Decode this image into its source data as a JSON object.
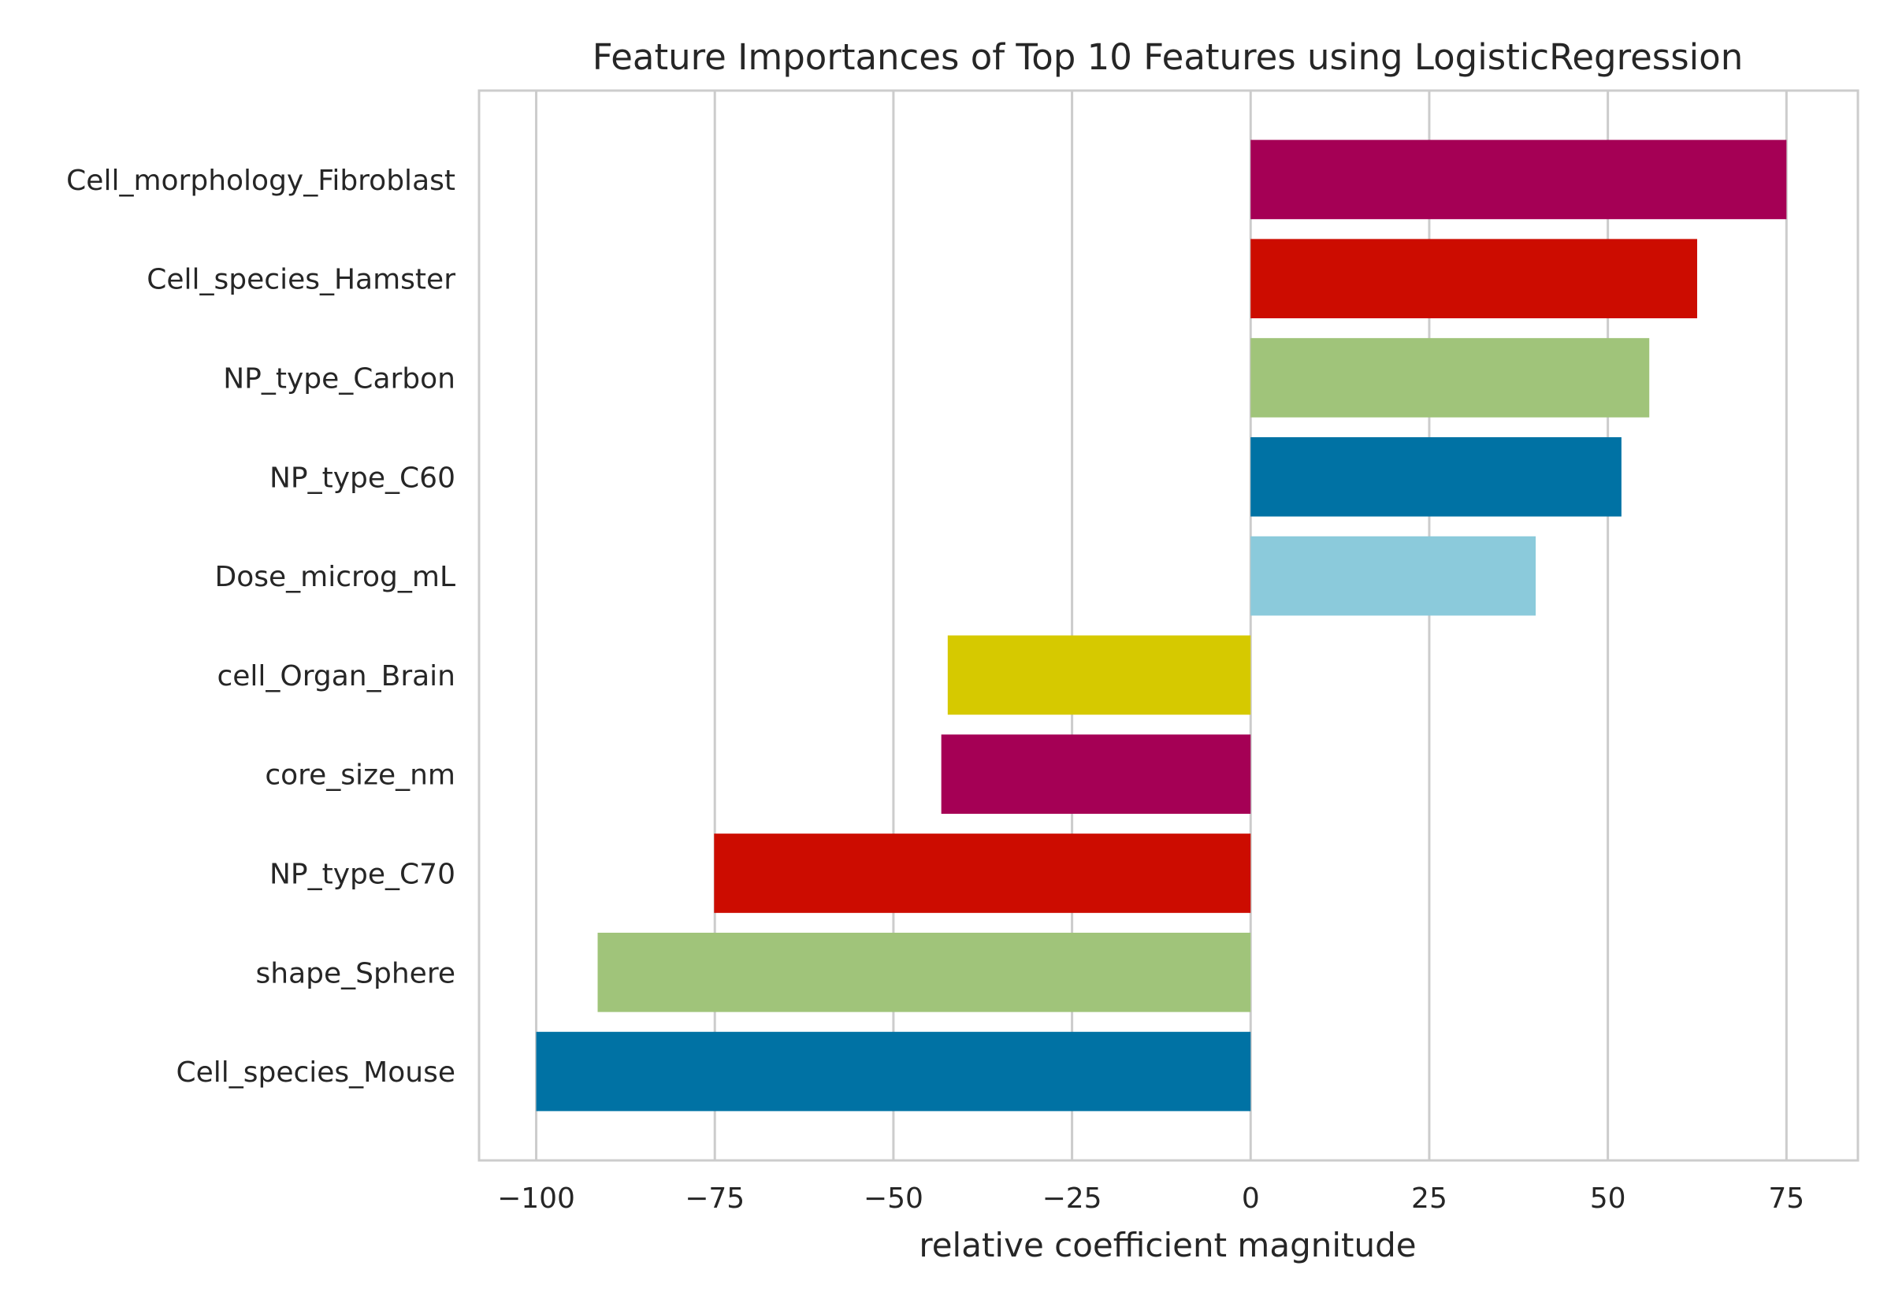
{
  "chart_data": {
    "type": "bar",
    "orientation": "horizontal",
    "title": "Feature Importances of Top 10 Features using LogisticRegression",
    "xlabel": "relative coefficient magnitude",
    "ylabel": "",
    "xlim": [
      -108,
      85
    ],
    "xticks": [
      -100,
      -75,
      -50,
      -25,
      0,
      25,
      50,
      75
    ],
    "xtick_labels": [
      "−100",
      "−75",
      "−50",
      "−25",
      "0",
      "25",
      "50",
      "75"
    ],
    "grid": "vertical",
    "legend": "none",
    "categories": [
      "Cell_morphology_Fibroblast",
      "Cell_species_Hamster",
      "NP_type_Carbon",
      "NP_type_C60",
      "Dose_microg_mL",
      "cell_Organ_Brain",
      "core_size_nm",
      "NP_type_C70",
      "shape_Sphere",
      "Cell_species_Mouse"
    ],
    "values": [
      75,
      62.5,
      55.8,
      51.9,
      39.9,
      -42.4,
      -43.3,
      -75.1,
      -91.4,
      -100
    ],
    "colors": [
      "#a50055",
      "#cc0c00",
      "#a0c47a",
      "#0072a4",
      "#8bcadb",
      "#d6c900",
      "#a50055",
      "#cc0c00",
      "#a0c47a",
      "#0072a4"
    ]
  }
}
